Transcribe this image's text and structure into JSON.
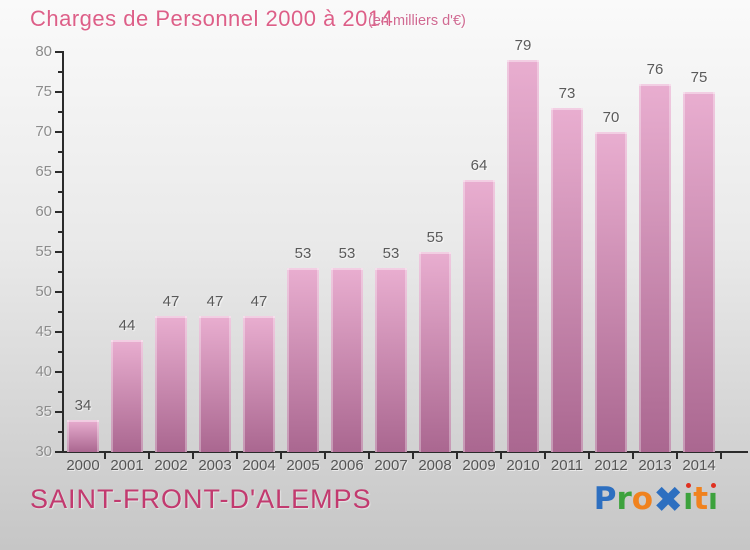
{
  "header": {
    "title": "Charges de Personnel 2000 à 2014",
    "subtitle": "(en milliers d'€)"
  },
  "footer": {
    "location": "SAINT-FRONT-D'ALEMPS",
    "logo_letters": [
      {
        "char": "P",
        "color": "#2d6fc0"
      },
      {
        "char": "r",
        "color": "#3da23d"
      },
      {
        "char": "o",
        "color": "#f0821e"
      },
      {
        "char": "✖",
        "color": "#2d6fc0",
        "style": "x-mark"
      },
      {
        "char": "i",
        "color": "#3da23d",
        "dot": "#e03020"
      },
      {
        "char": "t",
        "color": "#f0821e"
      },
      {
        "char": "i",
        "color": "#3da23d",
        "dot": "#e03020"
      }
    ]
  },
  "chart_data": {
    "type": "bar",
    "title": "Charges de Personnel 2000 à 2014",
    "unit_label": "(en milliers d'€)",
    "categories": [
      "2000",
      "2001",
      "2002",
      "2003",
      "2004",
      "2005",
      "2006",
      "2007",
      "2008",
      "2009",
      "2010",
      "2011",
      "2012",
      "2013",
      "2014"
    ],
    "values": [
      34,
      44,
      47,
      47,
      47,
      53,
      53,
      53,
      55,
      64,
      79,
      73,
      70,
      76,
      75
    ],
    "ylim": [
      30,
      80
    ],
    "ytick_major_step": 5,
    "ytick_minor_step": 2.5,
    "grid": false,
    "legend": "none",
    "value_labels_shown": true,
    "bar_colors": {
      "top": "#e9aed0",
      "bottom": "#aa6790"
    }
  },
  "colors": {
    "title": "#dd5f88",
    "subtitle": "#d06a92",
    "axis": "#2b2b2b",
    "tick_label": "#8c8c8c",
    "value_label": "#5a5a5a",
    "category_label": "#555555",
    "location": "#c23a6f",
    "bg_top": "#fafafa",
    "bg_bottom": "#c6c6c6"
  }
}
